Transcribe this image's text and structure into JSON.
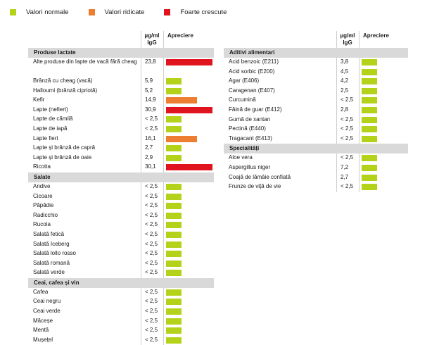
{
  "legend": [
    {
      "label": "Valori normale",
      "color": "#b5d21a"
    },
    {
      "label": "Valori ridicate",
      "color": "#ed7d31"
    },
    {
      "label": "Foarte crescute",
      "color": "#e0141e"
    }
  ],
  "columns": {
    "unit_line1": "µg/ml",
    "unit_line2": "IgG",
    "rating": "Apreciere"
  },
  "left": [
    {
      "title": "Produse lactate",
      "items": [
        {
          "name": "Alte produse din lapte de vacă fără cheag",
          "value": "23,8",
          "level": "high",
          "fill": 1.0
        },
        {
          "name": "Brânză cu cheag (vacă)",
          "value": "5,9",
          "level": "normal",
          "fill": 0.33
        },
        {
          "name": "Halloumi (brânză cipriotă)",
          "value": "5,2",
          "level": "normal",
          "fill": 0.33
        },
        {
          "name": "Kefir",
          "value": "14,9",
          "level": "elevated",
          "fill": 0.67
        },
        {
          "name": "Lapte (nefiert)",
          "value": "30,9",
          "level": "high",
          "fill": 1.0
        },
        {
          "name": "Lapte de cămilă",
          "value": "< 2,5",
          "level": "normal",
          "fill": 0.33
        },
        {
          "name": "Lapte de iapă",
          "value": "< 2,5",
          "level": "normal",
          "fill": 0.33
        },
        {
          "name": "Lapte fiert",
          "value": "16,1",
          "level": "elevated",
          "fill": 0.67
        },
        {
          "name": "Lapte și brânză de capră",
          "value": "2,7",
          "level": "normal",
          "fill": 0.33
        },
        {
          "name": "Lapte și brânză de oaie",
          "value": "2,9",
          "level": "normal",
          "fill": 0.33
        },
        {
          "name": "Ricotta",
          "value": "30,1",
          "level": "high",
          "fill": 1.0
        }
      ]
    },
    {
      "title": "Salate",
      "items": [
        {
          "name": "Andive",
          "value": "< 2,5",
          "level": "normal",
          "fill": 0.33
        },
        {
          "name": "Cicoare",
          "value": "< 2,5",
          "level": "normal",
          "fill": 0.33
        },
        {
          "name": "Păpădie",
          "value": "< 2,5",
          "level": "normal",
          "fill": 0.33
        },
        {
          "name": "Radicchio",
          "value": "< 2,5",
          "level": "normal",
          "fill": 0.33
        },
        {
          "name": "Rucola",
          "value": "< 2,5",
          "level": "normal",
          "fill": 0.33
        },
        {
          "name": "Salată fetică",
          "value": "< 2,5",
          "level": "normal",
          "fill": 0.33
        },
        {
          "name": "Salată Iceberg",
          "value": "< 2,5",
          "level": "normal",
          "fill": 0.33
        },
        {
          "name": "Salată lollo rosso",
          "value": "< 2,5",
          "level": "normal",
          "fill": 0.33
        },
        {
          "name": "Salată romană",
          "value": "< 2,5",
          "level": "normal",
          "fill": 0.33
        },
        {
          "name": "Salată verde",
          "value": "< 2,5",
          "level": "normal",
          "fill": 0.33
        }
      ]
    },
    {
      "title": "Ceai, cafea și vin",
      "items": [
        {
          "name": "Cafea",
          "value": "< 2,5",
          "level": "normal",
          "fill": 0.33
        },
        {
          "name": "Ceai negru",
          "value": "< 2,5",
          "level": "normal",
          "fill": 0.33
        },
        {
          "name": "Ceai verde",
          "value": "< 2,5",
          "level": "normal",
          "fill": 0.33
        },
        {
          "name": "Măceșe",
          "value": "< 2,5",
          "level": "normal",
          "fill": 0.33
        },
        {
          "name": "Mentă",
          "value": "< 2,5",
          "level": "normal",
          "fill": 0.33
        },
        {
          "name": "Mușețel",
          "value": "< 2,5",
          "level": "normal",
          "fill": 0.33
        }
      ]
    }
  ],
  "right": [
    {
      "title": "Aditivi alimentari",
      "items": [
        {
          "name": "Acid benzoic (E211)",
          "value": "3,8",
          "level": "normal",
          "fill": 0.33
        },
        {
          "name": "Acid sorbic (E200)",
          "value": "4,5",
          "level": "normal",
          "fill": 0.33
        },
        {
          "name": "Agar (E406)",
          "value": "4,2",
          "level": "normal",
          "fill": 0.33
        },
        {
          "name": "Caragenan (E407)",
          "value": "2,5",
          "level": "normal",
          "fill": 0.33
        },
        {
          "name": "Curcumină",
          "value": "< 2,5",
          "level": "normal",
          "fill": 0.33
        },
        {
          "name": "Făină de guar (E412)",
          "value": "2,8",
          "level": "normal",
          "fill": 0.33
        },
        {
          "name": "Gumă de xantan",
          "value": "< 2,5",
          "level": "normal",
          "fill": 0.33
        },
        {
          "name": "Pectină (E440)",
          "value": "< 2,5",
          "level": "normal",
          "fill": 0.33
        },
        {
          "name": "Tragacant (E413)",
          "value": "< 2,5",
          "level": "normal",
          "fill": 0.33
        }
      ]
    },
    {
      "title": "Specialități",
      "items": [
        {
          "name": "Aloe vera",
          "value": "< 2,5",
          "level": "normal",
          "fill": 0.33
        },
        {
          "name": "Aspergillus niger",
          "value": "7,2",
          "level": "normal",
          "fill": 0.33
        },
        {
          "name": "Coajă de lămâie confiată",
          "value": "2,7",
          "level": "normal",
          "fill": 0.33
        },
        {
          "name": "Frunze de viță de vie",
          "value": "< 2,5",
          "level": "normal",
          "fill": 0.33
        }
      ]
    }
  ]
}
